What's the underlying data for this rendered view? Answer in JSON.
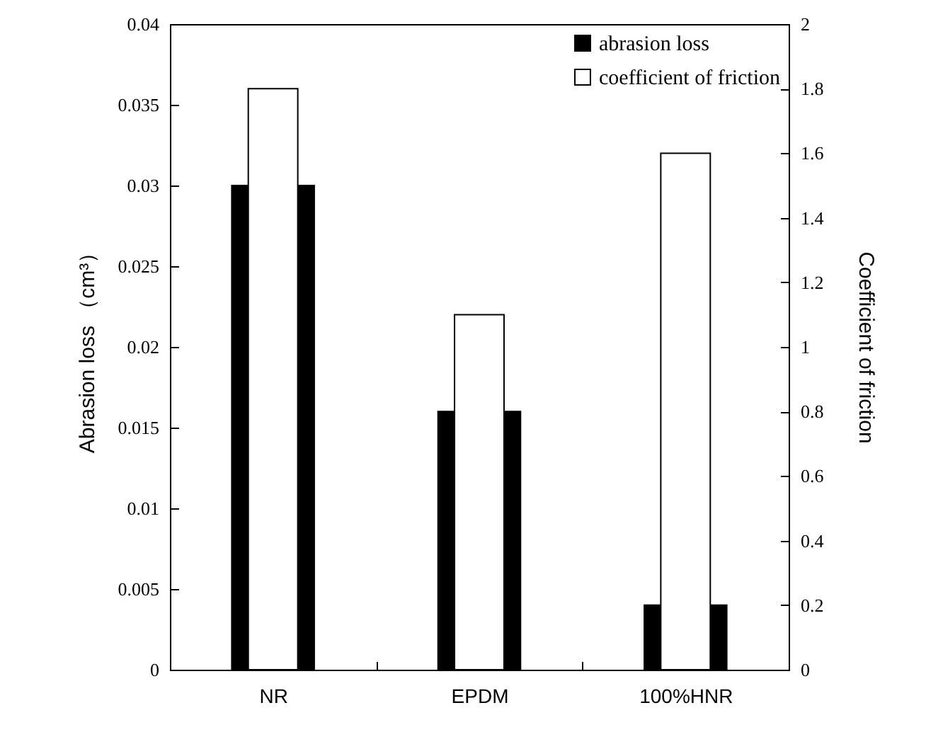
{
  "chart_data": {
    "type": "bar",
    "categories": [
      "NR",
      "EPDM",
      "100%HNR"
    ],
    "ylabel": "Abrasion loss （cm³）",
    "y2label": "Coefficient of friction",
    "ylim": [
      0,
      0.04
    ],
    "yticks": [
      0,
      0.005,
      0.01,
      0.015,
      0.02,
      0.025,
      0.03,
      0.035,
      0.04
    ],
    "y2lim": [
      0,
      2
    ],
    "y2ticks": [
      0,
      0.2,
      0.4,
      0.6,
      0.8,
      1,
      1.2,
      1.4,
      1.6,
      1.8,
      2
    ],
    "series": [
      {
        "name": "abrasion loss",
        "color": "#000000",
        "values": [
          0.03,
          0.016,
          0.004
        ]
      },
      {
        "name": "coefficient of friction",
        "color": "#ffffff",
        "axis": "y2",
        "values": [
          1.8,
          1.1,
          1.6
        ]
      }
    ],
    "legend": "top right",
    "grid": false
  }
}
